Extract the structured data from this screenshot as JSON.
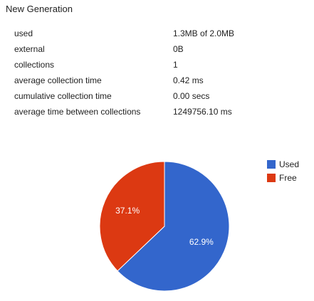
{
  "section": {
    "title": "New Generation"
  },
  "stats": [
    {
      "label": "used",
      "value": "1.3MB of 2.0MB"
    },
    {
      "label": "external",
      "value": "0B"
    },
    {
      "label": "collections",
      "value": "1"
    },
    {
      "label": "average collection time",
      "value": "0.42 ms"
    },
    {
      "label": "cumulative collection time",
      "value": "0.00 secs"
    },
    {
      "label": "average time between collections",
      "value": "1249756.10 ms"
    }
  ],
  "chart_data": {
    "type": "pie",
    "title": "",
    "categories": [
      "Used",
      "Free"
    ],
    "values": [
      62.9,
      37.1
    ],
    "labels": [
      "62.9%",
      "37.1%"
    ],
    "colors": [
      "#3366cc",
      "#dc3912"
    ],
    "legend_position": "right"
  }
}
